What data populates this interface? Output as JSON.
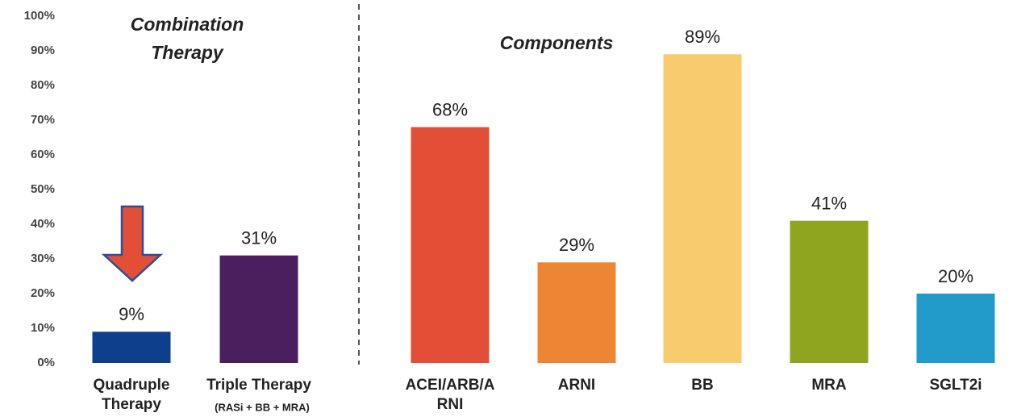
{
  "chart_data": {
    "type": "bar",
    "annotations": [
      "Combination Therapy",
      "Components",
      "(RASi + BB + MRA)"
    ],
    "categories": [
      "Quadruple Therapy",
      "Triple Therapy",
      "ACEI/ARB/ARNI",
      "ARNI",
      "BB",
      "MRA",
      "SGLT2i"
    ],
    "values": [
      9,
      31,
      68,
      29,
      89,
      41,
      20
    ],
    "value_labels": [
      "9%",
      "31%",
      "68%",
      "29%",
      "89%",
      "41%",
      "20%"
    ],
    "colors": [
      "#0e3f8c",
      "#4b1f5e",
      "#e24f36",
      "#ec8635",
      "#f8cb6e",
      "#8fa41f",
      "#239bca"
    ],
    "ylim": [
      0,
      100
    ],
    "yticks": [
      {
        "value": 0,
        "label": "0%"
      },
      {
        "value": 10,
        "label": "10%"
      },
      {
        "value": 20,
        "label": "20%"
      },
      {
        "value": 30,
        "label": "30%"
      },
      {
        "value": 40,
        "label": "40%"
      },
      {
        "value": 50,
        "label": "50%"
      },
      {
        "value": 60,
        "label": "60%"
      },
      {
        "value": 70,
        "label": "70%"
      },
      {
        "value": 80,
        "label": "80%"
      },
      {
        "value": 90,
        "label": "90%"
      },
      {
        "value": 100,
        "label": "100%"
      }
    ]
  }
}
